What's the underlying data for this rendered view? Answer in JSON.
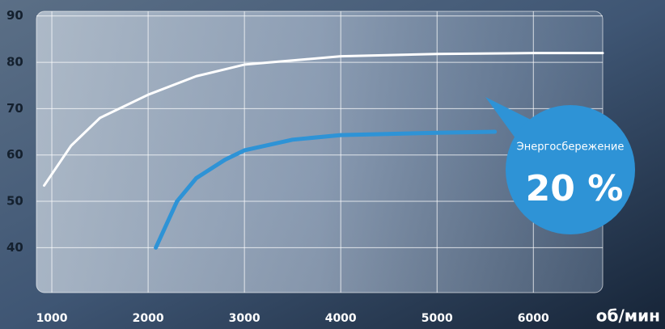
{
  "chart_data": {
    "type": "line",
    "x_unit_label": "об/мин",
    "annotation": {
      "label": "Энергосбережение",
      "value_text": "20 %"
    },
    "series": [
      {
        "color": "#ffffff",
        "x": [
          920,
          1200,
          1500,
          2000,
          2500,
          3000,
          4000,
          5000,
          6000,
          6720
        ],
        "values": [
          53.4,
          62,
          68,
          73,
          77,
          79.5,
          81.3,
          81.8,
          82,
          82
        ]
      },
      {
        "color": "#2e93d6",
        "x": [
          2080,
          2300,
          2500,
          2800,
          3000,
          3500,
          4000,
          5000,
          5600
        ],
        "values": [
          40,
          50,
          55,
          59,
          61,
          63.3,
          64.3,
          64.8,
          65
        ]
      }
    ],
    "xlim": [
      840,
      6720
    ],
    "xticks": [
      1000,
      2000,
      3000,
      4000,
      5000,
      6000
    ],
    "ylim": [
      30.3,
      91
    ],
    "yticks": [
      40,
      50,
      60,
      70,
      80,
      90
    ],
    "grid": true
  }
}
